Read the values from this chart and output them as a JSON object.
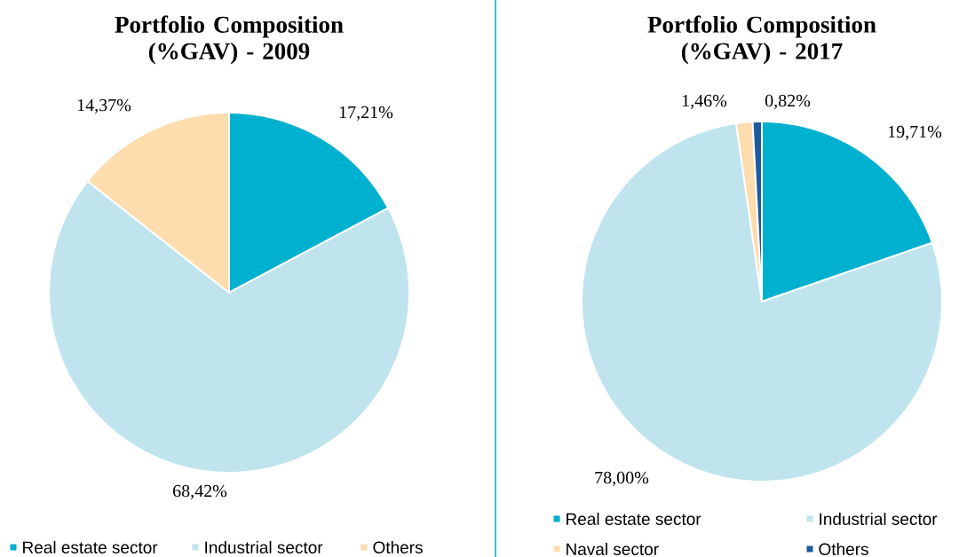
{
  "chart_data": [
    {
      "type": "pie",
      "title": "Portfolio Composition (%GAV) - 2009",
      "categories": [
        "Real estate sector",
        "Industrial sector",
        "Others"
      ],
      "values": [
        17.21,
        68.42,
        14.37
      ],
      "colors": [
        "#00b0cf",
        "#bfe4ed",
        "#fddcad"
      ],
      "value_labels": [
        "17,21%",
        "68,42%",
        "14,37%"
      ],
      "legend": "bottom"
    },
    {
      "type": "pie",
      "title": "Portfolio Composition (%GAV) - 2017",
      "categories": [
        "Real estate sector",
        "Industrial sector",
        "Naval sector",
        "Others"
      ],
      "values": [
        19.71,
        78.0,
        1.46,
        0.82
      ],
      "colors": [
        "#00b0cf",
        "#bfe4ed",
        "#fddcad",
        "#1f5a9e"
      ],
      "value_labels": [
        "19,71%",
        "78,00%",
        "1,46%",
        "0,82%"
      ],
      "legend": "bottom"
    }
  ]
}
